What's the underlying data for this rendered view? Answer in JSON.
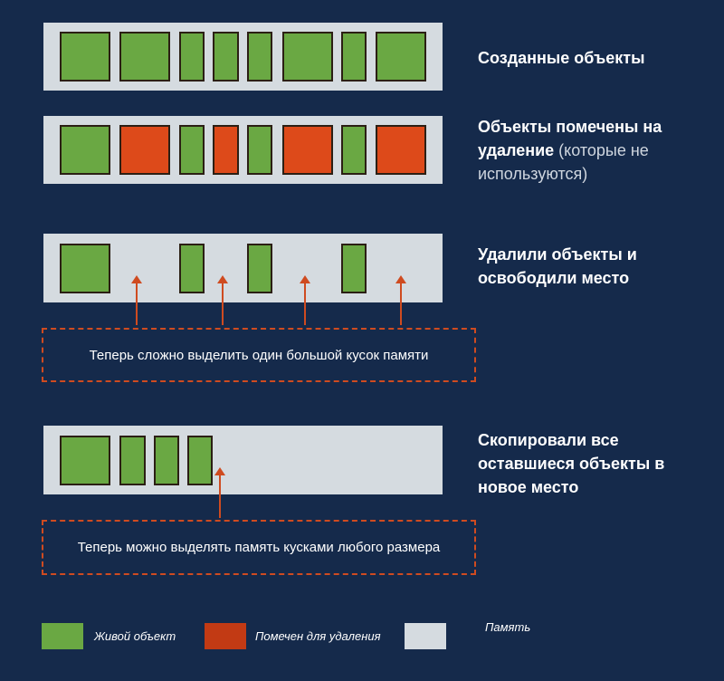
{
  "colors": {
    "background": "#152a4b",
    "live": "#6aa843",
    "marked": "#dd4a1a",
    "memory": "#d5dbe0",
    "note_border": "#cf4b20"
  },
  "rows": [
    {
      "label": "Созданные объекты"
    },
    {
      "label_bold": "Объекты помечены на удаление",
      "label_light": " (которые не используются)"
    },
    {
      "label": "Удалили объекты и освободили место"
    },
    {
      "label": "Скопировали все оставшиеся объекты в новое место"
    }
  ],
  "notes": {
    "fragmented": "Теперь сложно выделить один большой кусок памяти",
    "compacted": "Теперь можно выделять память кусками любого размера"
  },
  "legend": {
    "live": "Живой объект",
    "marked": "Помечен для удаления",
    "memory": "Память"
  }
}
